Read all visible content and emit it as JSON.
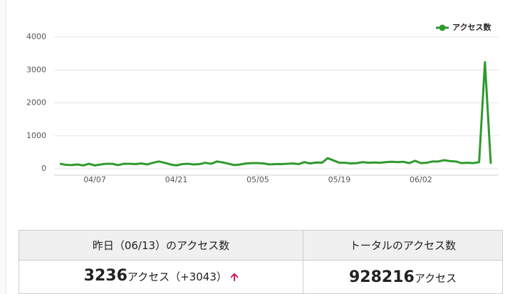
{
  "chart_data": {
    "type": "line",
    "categories": [
      null,
      null,
      null,
      null,
      null,
      null,
      "04/07",
      null,
      null,
      null,
      null,
      null,
      null,
      null,
      null,
      null,
      null,
      null,
      null,
      null,
      "04/21",
      null,
      null,
      null,
      null,
      null,
      null,
      null,
      null,
      null,
      null,
      null,
      null,
      null,
      "05/05",
      null,
      null,
      null,
      null,
      null,
      null,
      null,
      null,
      null,
      null,
      null,
      null,
      null,
      "05/19",
      null,
      null,
      null,
      null,
      null,
      null,
      null,
      null,
      null,
      null,
      null,
      null,
      null,
      "06/02",
      null,
      null,
      null,
      null,
      null,
      null,
      null,
      null,
      null,
      null,
      null,
      null
    ],
    "series": [
      {
        "name": "アクセス数",
        "color": "#2e9a2e",
        "values": [
          150,
          120,
          110,
          130,
          100,
          150,
          100,
          130,
          150,
          150,
          110,
          150,
          150,
          140,
          160,
          130,
          180,
          220,
          180,
          130,
          100,
          140,
          150,
          130,
          140,
          180,
          150,
          220,
          190,
          150,
          110,
          130,
          160,
          170,
          170,
          160,
          130,
          140,
          140,
          150,
          160,
          140,
          200,
          160,
          190,
          180,
          320,
          250,
          180,
          180,
          160,
          170,
          200,
          180,
          190,
          180,
          200,
          210,
          200,
          210,
          170,
          240,
          170,
          180,
          220,
          220,
          260,
          230,
          220,
          170,
          180,
          170,
          200,
          3236,
          150
        ]
      }
    ],
    "ylim": [
      0,
      4000
    ],
    "yticks": [
      0,
      1000,
      2000,
      3000,
      4000
    ],
    "grid": true,
    "legend": "top-right"
  },
  "table": {
    "headers": [
      "昨日（06/13）のアクセス数",
      "トータルのアクセス数"
    ],
    "rows": [
      [
        {
          "number": "3236",
          "unit": "アクセス",
          "change": "（+3043）"
        },
        {
          "number": "928216",
          "unit": "アクセス"
        }
      ]
    ]
  }
}
